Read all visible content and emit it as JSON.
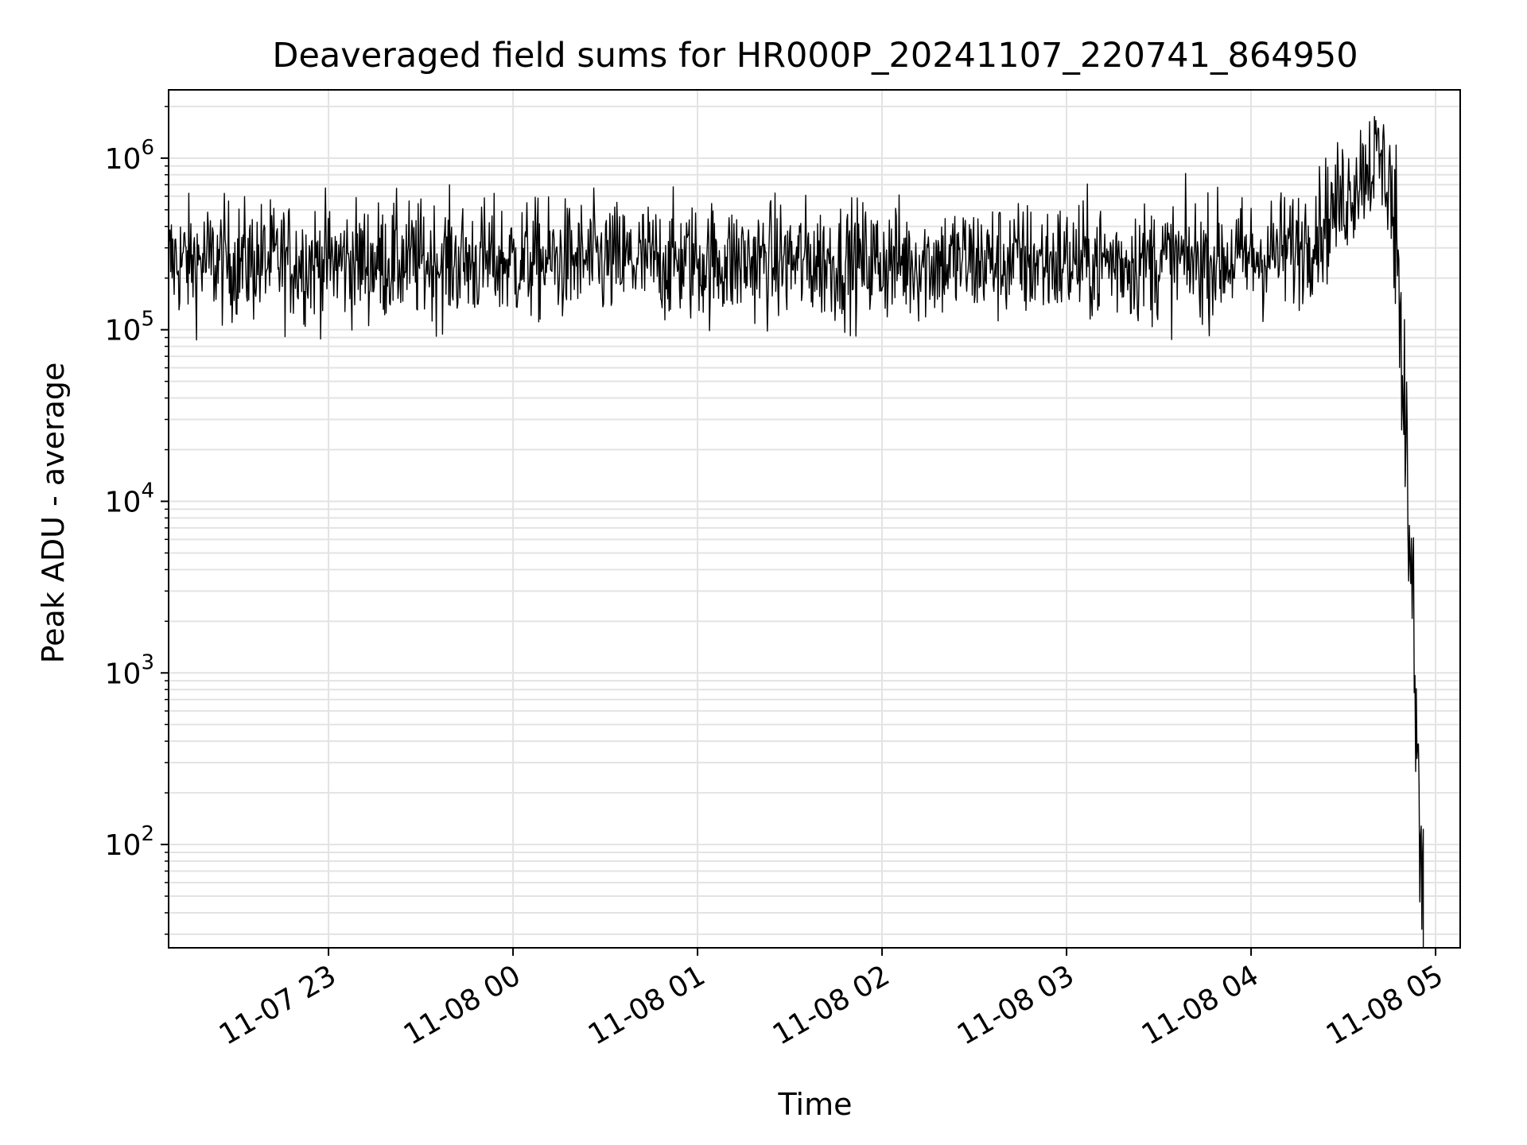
{
  "chart_data": {
    "type": "line",
    "title": "Deaveraged field sums for HR000P_20241107_220741_864950",
    "xlabel": "Time",
    "ylabel": "Peak ADU - average",
    "y_scale": "log",
    "ylim": [
      25,
      2500000
    ],
    "xlim": [
      "2024-11-07 22:08",
      "2024-11-08 05:08"
    ],
    "grid": true,
    "x_ticks": [
      {
        "t": "2024-11-07 23:00",
        "label": "11-07 23"
      },
      {
        "t": "2024-11-08 00:00",
        "label": "11-08 00"
      },
      {
        "t": "2024-11-08 01:00",
        "label": "11-08 01"
      },
      {
        "t": "2024-11-08 02:00",
        "label": "11-08 02"
      },
      {
        "t": "2024-11-08 03:00",
        "label": "11-08 03"
      },
      {
        "t": "2024-11-08 04:00",
        "label": "11-08 04"
      },
      {
        "t": "2024-11-08 05:00",
        "label": "11-08 05"
      }
    ],
    "y_ticks": [
      {
        "value": 100,
        "base": "10",
        "exp": "2"
      },
      {
        "value": 1000,
        "base": "10",
        "exp": "3"
      },
      {
        "value": 10000,
        "base": "10",
        "exp": "4"
      },
      {
        "value": 100000,
        "base": "10",
        "exp": "5"
      },
      {
        "value": 1000000,
        "base": "10",
        "exp": "6"
      }
    ],
    "series": [
      {
        "color": "#000000",
        "x": [
          "2024-11-07 22:08",
          "2024-11-07 22:30",
          "2024-11-07 23:00",
          "2024-11-07 23:30",
          "2024-11-08 00:00",
          "2024-11-08 00:30",
          "2024-11-08 01:00",
          "2024-11-08 01:30",
          "2024-11-08 02:00",
          "2024-11-08 02:30",
          "2024-11-08 03:00",
          "2024-11-08 03:30",
          "2024-11-08 04:00",
          "2024-11-08 04:15",
          "2024-11-08 04:25",
          "2024-11-08 04:32",
          "2024-11-08 04:37",
          "2024-11-08 04:42",
          "2024-11-08 04:45",
          "2024-11-08 04:48",
          "2024-11-08 04:50",
          "2024-11-08 04:52",
          "2024-11-08 04:54",
          "2024-11-08 04:55",
          "2024-11-08 04:56"
        ],
        "y": [
          250000,
          250000,
          250000,
          250000,
          250000,
          250000,
          250000,
          250000,
          250000,
          250000,
          250000,
          250000,
          260000,
          300000,
          450000,
          650000,
          900000,
          1000000,
          700000,
          250000,
          30000,
          3000,
          400,
          80,
          25
        ],
        "scatter_factor": 1.7
      }
    ]
  }
}
